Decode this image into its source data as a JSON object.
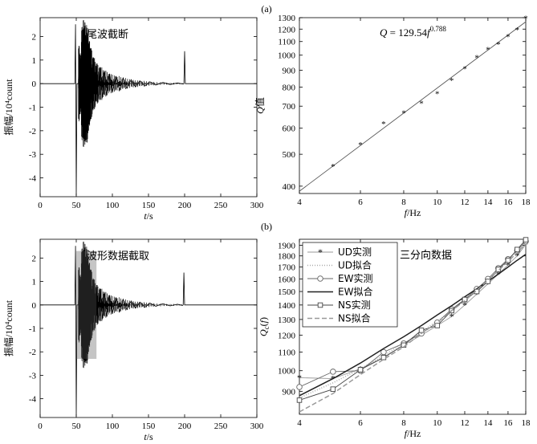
{
  "figure": {
    "panel_a_label": "(a)",
    "panel_b_label": "(b)"
  },
  "chart_data": [
    {
      "id": "a-left",
      "type": "line",
      "title": "",
      "annotation": "尾波截断",
      "xlabel": "t/s",
      "ylabel": "振幅/10⁴count",
      "xlim": [
        0,
        300
      ],
      "ylim": [
        -4.8,
        2.8
      ],
      "xticks": [
        0,
        50,
        100,
        150,
        200,
        250,
        300
      ],
      "yticks": [
        -4,
        -3,
        -2,
        -1,
        0,
        1,
        2
      ],
      "series": [
        {
          "values": [
            [
              0,
              0
            ],
            [
              48,
              0
            ],
            [
              49,
              2.52
            ],
            [
              50,
              -4.75
            ],
            [
              51,
              0
            ],
            [
              53,
              0
            ],
            [
              54,
              1.6
            ],
            [
              55,
              -1.3
            ],
            [
              56,
              1.2
            ],
            [
              57,
              -1.1
            ],
            [
              58,
              2.4
            ],
            [
              59,
              -1.8
            ],
            [
              60,
              2.7
            ],
            [
              61,
              -2.2
            ],
            [
              62,
              2.6
            ],
            [
              63,
              -2.4
            ],
            [
              64,
              2.3
            ],
            [
              65,
              -2.5
            ],
            [
              66,
              2.1
            ],
            [
              67,
              -2.0
            ],
            [
              68,
              1.8
            ],
            [
              69,
              -1.6
            ],
            [
              70,
              1.5
            ],
            [
              72,
              -1.3
            ],
            [
              74,
              1.1
            ],
            [
              76,
              -1.0
            ],
            [
              78,
              0.85
            ],
            [
              80,
              -0.8
            ],
            [
              83,
              0.7
            ],
            [
              86,
              -0.62
            ],
            [
              89,
              0.55
            ],
            [
              92,
              -0.5
            ],
            [
              96,
              0.42
            ],
            [
              100,
              -0.38
            ],
            [
              105,
              0.32
            ],
            [
              110,
              -0.28
            ],
            [
              115,
              0.24
            ],
            [
              120,
              -0.2
            ],
            [
              126,
              0.17
            ],
            [
              132,
              -0.14
            ],
            [
              138,
              0.12
            ],
            [
              145,
              -0.1
            ],
            [
              152,
              0.08
            ],
            [
              160,
              -0.06
            ],
            [
              170,
              0.05
            ],
            [
              180,
              -0.04
            ],
            [
              190,
              0.03
            ],
            [
              198,
              -0.02
            ],
            [
              199,
              0
            ],
            [
              200,
              1.38
            ],
            [
              201,
              0
            ],
            [
              300,
              0
            ]
          ]
        }
      ]
    },
    {
      "id": "a-right",
      "type": "scatter",
      "scale": "log-log",
      "annotation": "Q = 129.54f",
      "annotation_exponent": "0.788",
      "xlabel": "f/Hz",
      "ylabel": "Q值",
      "xlim": [
        4,
        18
      ],
      "ylim": [
        380,
        1300
      ],
      "xticks": [
        4,
        6,
        8,
        10,
        12,
        14,
        16,
        18
      ],
      "yticks": [
        400,
        500,
        600,
        700,
        800,
        900,
        1000,
        1100,
        1200,
        1300
      ],
      "points": [
        [
          5,
          460
        ],
        [
          6,
          535
        ],
        [
          7,
          620
        ],
        [
          8,
          668
        ],
        [
          9,
          715
        ],
        [
          10,
          765
        ],
        [
          11,
          840
        ],
        [
          12,
          910
        ],
        [
          13,
          985
        ],
        [
          14,
          1040
        ],
        [
          15,
          1080
        ],
        [
          16,
          1140
        ],
        [
          17,
          1195
        ],
        [
          18,
          1298
        ]
      ],
      "fit": {
        "a": 129.54,
        "b": 0.788
      }
    },
    {
      "id": "b-left",
      "type": "line",
      "title": "",
      "annotation": "波形数据截取",
      "xlabel": "t/s",
      "ylabel": "振幅/10⁴count",
      "xlim": [
        0,
        300
      ],
      "ylim": [
        -4.8,
        2.8
      ],
      "xticks": [
        0,
        50,
        100,
        150,
        200,
        250,
        300
      ],
      "yticks": [
        -4,
        -3,
        -2,
        -1,
        0,
        1,
        2
      ],
      "series": [
        {
          "values": [
            [
              0,
              0
            ],
            [
              48,
              0
            ],
            [
              49,
              2.52
            ],
            [
              50,
              -4.75
            ],
            [
              51,
              0
            ],
            [
              53,
              0
            ],
            [
              54,
              1.6
            ],
            [
              55,
              -1.3
            ],
            [
              56,
              1.2
            ],
            [
              57,
              -1.1
            ],
            [
              58,
              2.4
            ],
            [
              59,
              -1.8
            ],
            [
              60,
              2.7
            ],
            [
              61,
              -2.2
            ],
            [
              62,
              2.6
            ],
            [
              63,
              -2.4
            ],
            [
              64,
              2.3
            ],
            [
              65,
              -2.5
            ],
            [
              66,
              2.1
            ],
            [
              67,
              -2.0
            ],
            [
              68,
              1.8
            ],
            [
              69,
              -1.6
            ],
            [
              70,
              1.5
            ],
            [
              72,
              -1.3
            ],
            [
              74,
              1.1
            ],
            [
              76,
              -1.0
            ],
            [
              78,
              0.85
            ],
            [
              80,
              -0.8
            ],
            [
              83,
              0.7
            ],
            [
              86,
              -0.62
            ],
            [
              89,
              0.55
            ],
            [
              92,
              -0.5
            ],
            [
              96,
              0.42
            ],
            [
              100,
              -0.38
            ],
            [
              105,
              0.32
            ],
            [
              110,
              -0.28
            ],
            [
              115,
              0.24
            ],
            [
              120,
              -0.2
            ],
            [
              126,
              0.17
            ],
            [
              132,
              -0.14
            ],
            [
              138,
              0.12
            ],
            [
              145,
              -0.1
            ],
            [
              152,
              0.08
            ],
            [
              160,
              -0.06
            ],
            [
              170,
              0.05
            ],
            [
              180,
              -0.04
            ],
            [
              190,
              0.03
            ],
            [
              197,
              -0.02
            ],
            [
              198,
              0
            ],
            [
              199,
              1.38
            ],
            [
              200,
              0
            ],
            [
              300,
              0
            ]
          ]
        }
      ],
      "window": [
        50,
        78
      ]
    },
    {
      "id": "b-right",
      "type": "line",
      "scale": "log-log",
      "annotation": "三分向数据",
      "xlabel": "f/Hz",
      "ylabel": "Qc(f)",
      "xlim": [
        4,
        18
      ],
      "ylim": [
        800,
        1960
      ],
      "xticks": [
        4,
        6,
        8,
        10,
        12,
        14,
        16,
        18
      ],
      "yticks": [
        900,
        1000,
        1100,
        1200,
        1300,
        1400,
        1500,
        1600,
        1700,
        1800,
        1900
      ],
      "legend": [
        {
          "label": "UD实测",
          "color": "#999999",
          "marker": "star",
          "dash": ""
        },
        {
          "label": "UD拟合",
          "color": "#aaaaaa",
          "marker": "",
          "dash": "1,2"
        },
        {
          "label": "EW实测",
          "color": "#666666",
          "marker": "circle",
          "dash": ""
        },
        {
          "label": "EW拟合",
          "color": "#222222",
          "marker": "",
          "dash": ""
        },
        {
          "label": "NS实测",
          "color": "#444444",
          "marker": "square",
          "dash": ""
        },
        {
          "label": "NS拟合",
          "color": "#999999",
          "marker": "",
          "dash": "6,3"
        }
      ],
      "x": [
        4,
        5,
        6,
        7,
        8,
        9,
        10,
        11,
        12,
        13,
        14,
        15,
        16,
        17,
        18
      ],
      "series": [
        {
          "name": "UD实测",
          "values": [
            965,
            960,
            1010,
            1070,
            1140,
            1200,
            1260,
            1320,
            1400,
            1480,
            1560,
            1640,
            1720,
            1800,
            1910
          ]
        },
        {
          "name": "UD拟合",
          "values": [
            870,
            940,
            1010,
            1080,
            1150,
            1220,
            1290,
            1360,
            1430,
            1510,
            1590,
            1670,
            1750,
            1830,
            1910
          ]
        },
        {
          "name": "EW实测",
          "values": [
            920,
            995,
            1000,
            1100,
            1150,
            1210,
            1280,
            1370,
            1440,
            1520,
            1600,
            1690,
            1770,
            1850,
            1940
          ]
        },
        {
          "name": "EW拟合",
          "values": [
            880,
            960,
            1040,
            1120,
            1190,
            1260,
            1330,
            1395,
            1460,
            1520,
            1580,
            1640,
            1700,
            1760,
            1815
          ]
        },
        {
          "name": "NS实测",
          "values": [
            860,
            910,
            1005,
            1070,
            1140,
            1230,
            1260,
            1360,
            1440,
            1500,
            1580,
            1680,
            1760,
            1860,
            1955
          ]
        },
        {
          "name": "NS拟合",
          "values": [
            810,
            890,
            980,
            1060,
            1130,
            1210,
            1280,
            1360,
            1430,
            1510,
            1590,
            1670,
            1750,
            1830,
            1920
          ]
        }
      ]
    }
  ]
}
